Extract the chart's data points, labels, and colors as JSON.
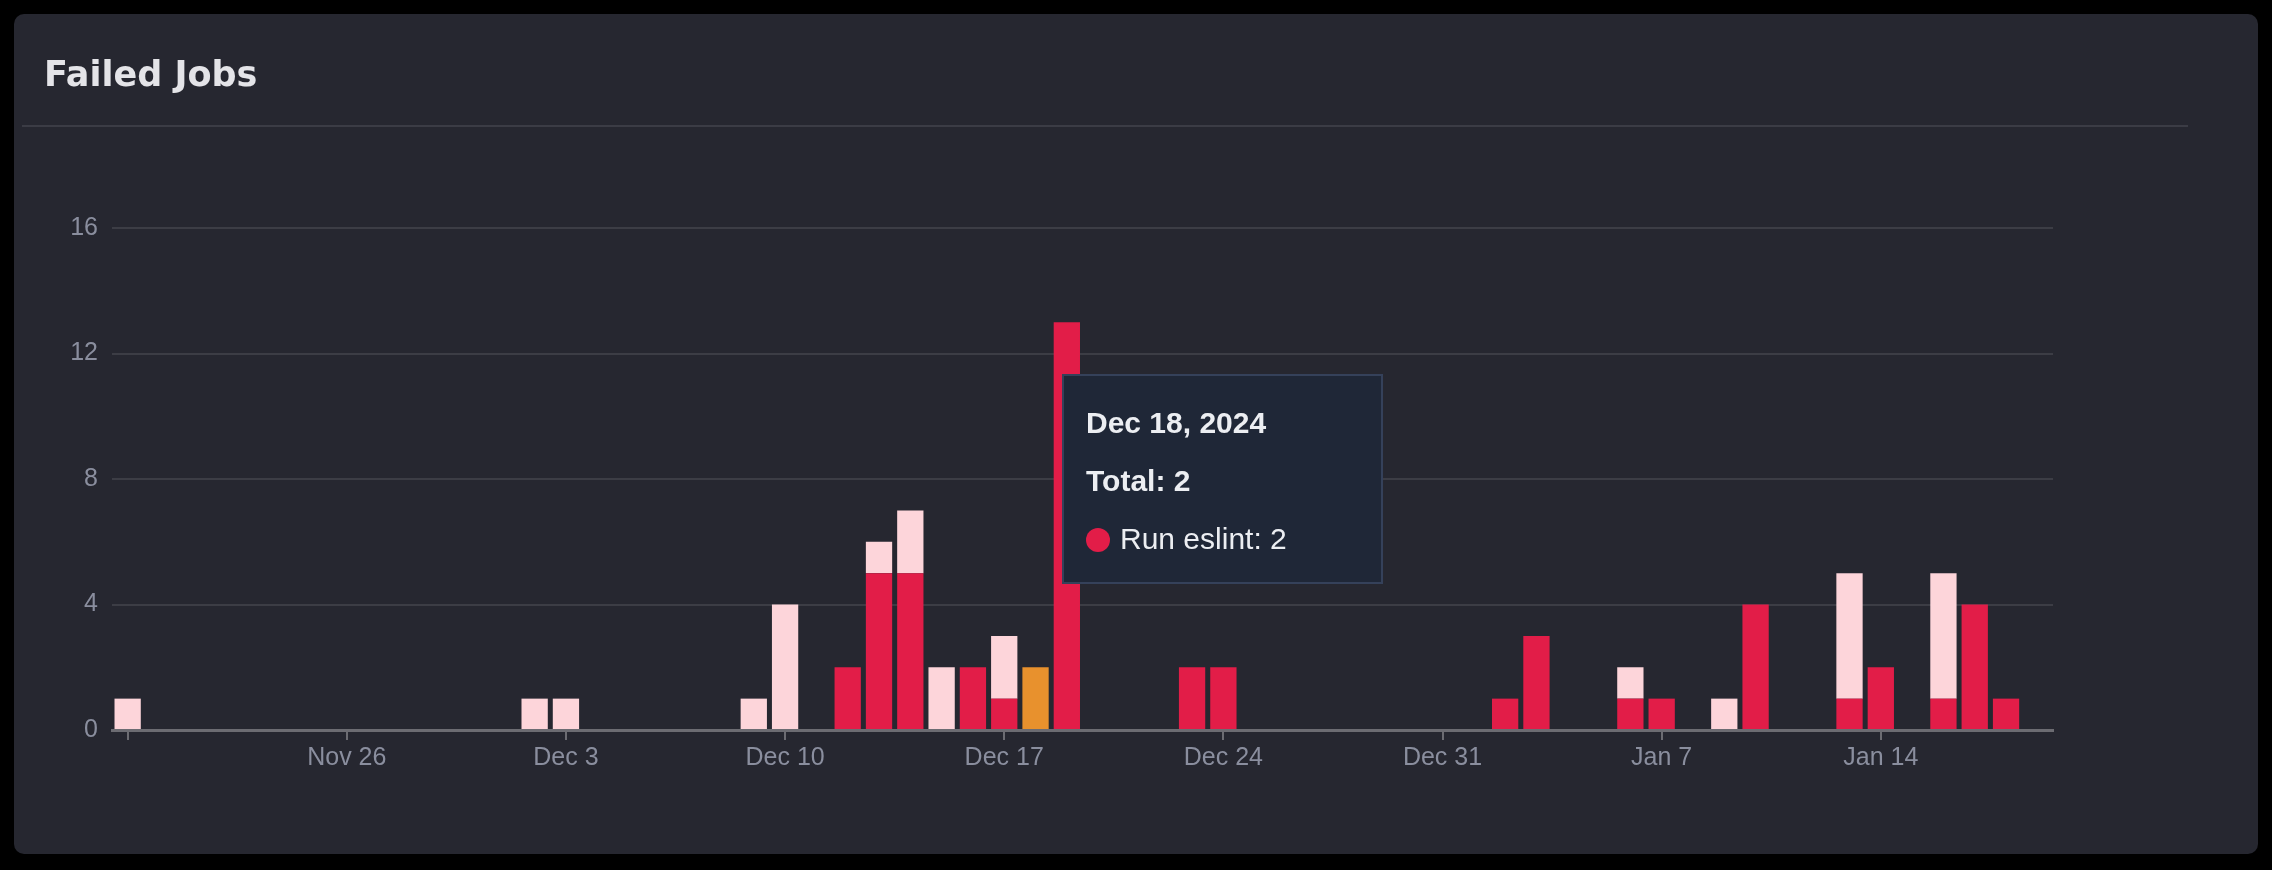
{
  "chart_data": {
    "type": "bar",
    "title": "Failed Jobs",
    "x": [
      "2024-11-19",
      "2024-12-02",
      "2024-12-03",
      "2024-12-09",
      "2024-12-10",
      "2024-12-12",
      "2024-12-13",
      "2024-12-14",
      "2024-12-15",
      "2024-12-16",
      "2024-12-17",
      "2024-12-18",
      "2024-12-19",
      "2024-12-23",
      "2024-12-24",
      "2025-01-02",
      "2025-01-03",
      "2025-01-06",
      "2025-01-07",
      "2025-01-09",
      "2025-01-10",
      "2025-01-13",
      "2025-01-14",
      "2025-01-16",
      "2025-01-17",
      "2025-01-18"
    ],
    "series": [
      {
        "color": "#e21d48",
        "colors": [
          "#e21d48",
          "#e21d48",
          "#e21d48",
          "#e21d48",
          "#e21d48",
          "#e21d48",
          "#e21d48",
          "#e21d48",
          "#e21d48",
          "#e21d48",
          "#e21d48",
          "#e8912d",
          "#e21d48",
          "#e21d48",
          "#e21d48",
          "#e21d48",
          "#e21d48",
          "#e21d48",
          "#e21d48",
          "#e21d48",
          "#e21d48",
          "#e21d48",
          "#e21d48",
          "#e21d48",
          "#e21d48",
          "#e21d48"
        ],
        "values": [
          null,
          null,
          null,
          null,
          null,
          2,
          5,
          5,
          null,
          2,
          1,
          2,
          13,
          2,
          2,
          1,
          3,
          1,
          1,
          null,
          4,
          1,
          2,
          1,
          4,
          1
        ]
      },
      {
        "color": "#fdd5da",
        "values": [
          1,
          1,
          1,
          1,
          4,
          null,
          1,
          2,
          2,
          null,
          2,
          null,
          null,
          null,
          null,
          null,
          null,
          1,
          null,
          1,
          null,
          4,
          null,
          4,
          null,
          null
        ]
      }
    ],
    "stacked": true,
    "xlim": [
      "2024-11-18T12:00",
      "2025-01-19T12:00"
    ],
    "xticks": [
      {
        "value": "2024-11-19",
        "label": null
      },
      {
        "value": "2024-11-26",
        "label": "Nov 26"
      },
      {
        "value": "2024-12-03",
        "label": "Dec 3"
      },
      {
        "value": "2024-12-10",
        "label": "Dec 10"
      },
      {
        "value": "2024-12-17",
        "label": "Dec 17"
      },
      {
        "value": "2024-12-24",
        "label": "Dec 24"
      },
      {
        "value": "2024-12-31",
        "label": "Dec 31"
      },
      {
        "value": "2025-01-07",
        "label": "Jan 7"
      },
      {
        "value": "2025-01-14",
        "label": "Jan 14"
      }
    ],
    "ylim": [
      0,
      16
    ],
    "yticks": [
      0,
      4,
      8,
      12,
      16
    ],
    "grid": "y",
    "annotations": [
      "Dec 18, 2024",
      "Total: 2",
      "Run eslint: 2"
    ]
  }
}
